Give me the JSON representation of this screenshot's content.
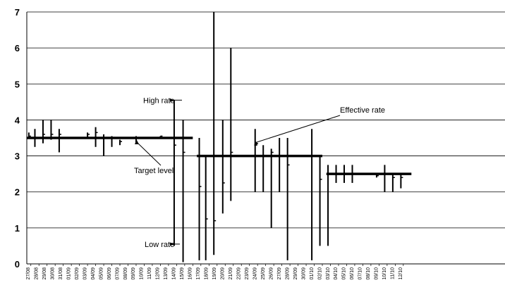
{
  "chart_data": {
    "type": "bar",
    "title": "",
    "xlabel": "",
    "ylabel": "",
    "ylim": [
      0,
      7
    ],
    "yticks": [
      "0",
      "1",
      "2",
      "3",
      "4",
      "5",
      "6",
      "7"
    ],
    "grid": "horizontal",
    "categories": [
      "27/08",
      "28/08",
      "29/08",
      "30/08",
      "31/08",
      "01/09",
      "02/09",
      "03/09",
      "04/09",
      "05/09",
      "06/09",
      "07/09",
      "08/09",
      "09/09",
      "10/09",
      "11/09",
      "12/09",
      "13/09",
      "14/09",
      "15/09",
      "16/09",
      "17/09",
      "18/09",
      "19/09",
      "20/09",
      "21/09",
      "22/09",
      "23/09",
      "24/09",
      "25/09",
      "26/09",
      "27/09",
      "28/09",
      "29/09",
      "30/09",
      "01/10",
      "02/10",
      "03/10",
      "04/10",
      "05/10",
      "06/10",
      "07/10",
      "08/10",
      "09/10",
      "10/10",
      "11/10",
      "12/10"
    ],
    "series": [
      {
        "type": "high-low",
        "points": [
          {
            "x": 0.25,
            "high": 3.65,
            "low": 3.5,
            "close": 3.55
          },
          {
            "x": 1.0,
            "high": 3.75,
            "low": 3.25,
            "close": 3.5
          },
          {
            "x": 2.0,
            "high": 4.0,
            "low": 3.35,
            "close": 3.6
          },
          {
            "x": 3.0,
            "high": 4.0,
            "low": 3.45,
            "close": 3.6
          },
          {
            "x": 4.0,
            "high": 3.75,
            "low": 3.1,
            "close": 3.6
          },
          {
            "x": 7.5,
            "high": 3.65,
            "low": 3.5,
            "close": 3.6
          },
          {
            "x": 8.5,
            "high": 3.8,
            "low": 3.25,
            "close": 3.65
          },
          {
            "x": 9.5,
            "high": 3.6,
            "low": 3.0,
            "close": 3.5
          },
          {
            "x": 10.5,
            "high": 3.55,
            "low": 3.25,
            "close": 3.5
          },
          {
            "x": 11.5,
            "high": 3.45,
            "low": 3.3,
            "close": 3.4
          },
          {
            "x": 13.5,
            "high": 3.55,
            "low": 3.35,
            "close": 3.5
          },
          {
            "x": 16.5,
            "high": 3.55,
            "low": 3.5,
            "close": 3.55
          },
          {
            "x": 18.2,
            "high": 4.55,
            "low": 0.5,
            "close": 3.3
          },
          {
            "x": 19.3,
            "high": 4.0,
            "low": 0.05,
            "close": 3.1
          },
          {
            "x": 21.3,
            "high": 3.5,
            "low": 0.1,
            "close": 2.15
          },
          {
            "x": 22.1,
            "high": 3.0,
            "low": 0.1,
            "close": 1.25
          },
          {
            "x": 23.1,
            "high": 7.0,
            "low": 0.25,
            "close": 1.2
          },
          {
            "x": 24.2,
            "high": 4.0,
            "low": 1.4,
            "close": 2.25
          },
          {
            "x": 25.2,
            "high": 6.0,
            "low": 1.75,
            "close": 3.1
          },
          {
            "x": 28.2,
            "high": 3.75,
            "low": 2.0,
            "close": 3.3
          },
          {
            "x": 29.2,
            "high": 3.3,
            "low": 2.0,
            "close": 3.0
          },
          {
            "x": 30.2,
            "high": 3.2,
            "low": 1.0,
            "close": 3.1
          },
          {
            "x": 31.2,
            "high": 3.5,
            "low": 2.0,
            "close": 3.0
          },
          {
            "x": 32.2,
            "high": 3.5,
            "low": 0.1,
            "close": 2.75
          },
          {
            "x": 35.2,
            "high": 3.75,
            "low": 0.1,
            "close": 3.0
          },
          {
            "x": 36.2,
            "high": 3.0,
            "low": 0.5,
            "close": 2.35
          },
          {
            "x": 37.2,
            "high": 2.75,
            "low": 0.5,
            "close": 2.5
          },
          {
            "x": 38.2,
            "high": 2.75,
            "low": 2.25,
            "close": 2.5
          },
          {
            "x": 39.2,
            "high": 2.75,
            "low": 2.25,
            "close": 2.5
          },
          {
            "x": 40.2,
            "high": 2.75,
            "low": 2.25,
            "close": 2.5
          },
          {
            "x": 43.2,
            "high": 2.5,
            "low": 2.4,
            "close": 2.45
          },
          {
            "x": 44.2,
            "high": 2.75,
            "low": 2.0,
            "close": 2.5
          },
          {
            "x": 45.2,
            "high": 2.5,
            "low": 2.0,
            "close": 2.4
          },
          {
            "x": 46.2,
            "high": 2.5,
            "low": 2.1,
            "close": 2.4
          }
        ]
      },
      {
        "name": "Target level",
        "type": "step",
        "segments": [
          {
            "x_start": 0.0,
            "x_end": 20.5,
            "y": 3.5
          },
          {
            "x_start": 21.0,
            "x_end": 36.5,
            "y": 3.0
          },
          {
            "x_start": 37.0,
            "x_end": 47.5,
            "y": 2.5
          }
        ]
      }
    ],
    "annotations": [
      {
        "text": "High rate",
        "target_x": 18.2,
        "target_y": 4.55
      },
      {
        "text": "Low rate",
        "target_x": 18.2,
        "target_y": 0.55
      },
      {
        "text": "Target level",
        "target_x": 13.5,
        "target_y": 3.5
      },
      {
        "text": "Effective rate",
        "target_x": 28.0,
        "target_y": 3.3
      }
    ]
  }
}
